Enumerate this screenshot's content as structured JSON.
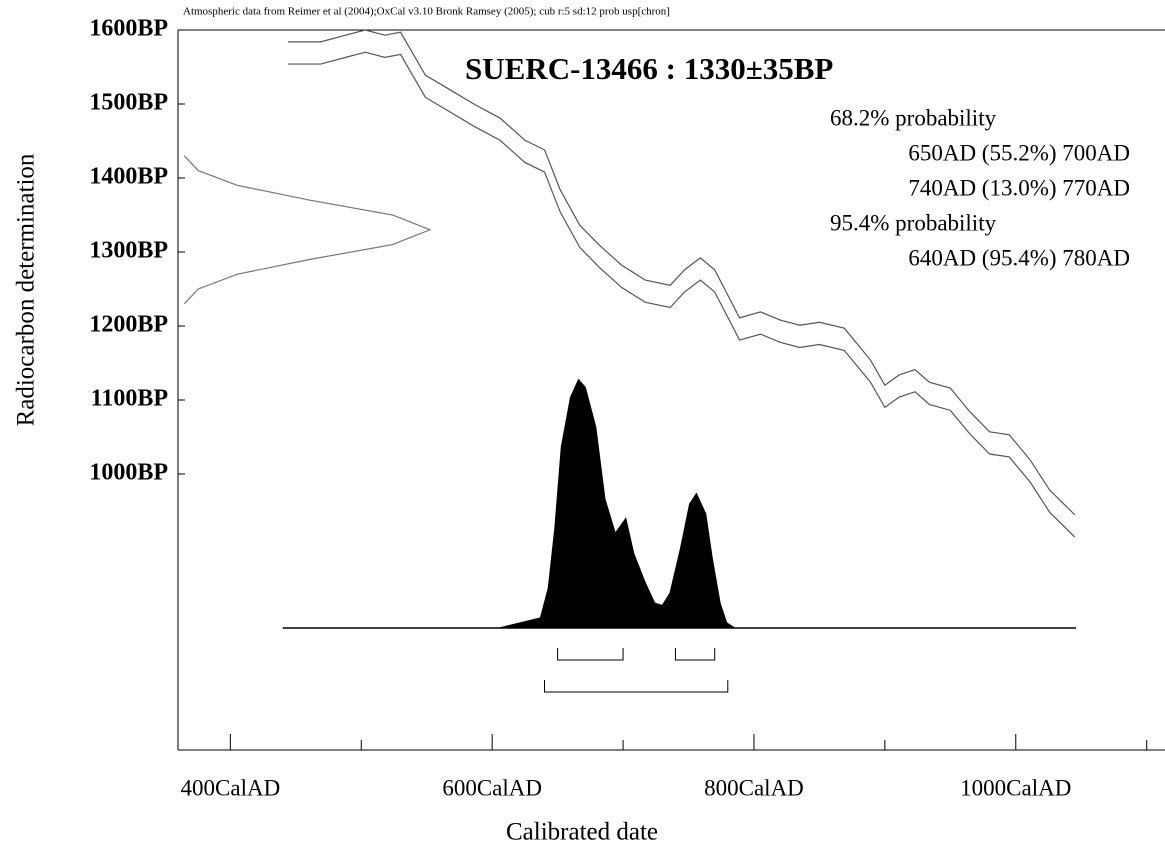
{
  "chart_data": {
    "type": "calibration",
    "note": "Atmospheric data from Reimer et al (2004);OxCal v3.10 Bronk Ramsey (2005); cub r:5 sd:12 prob usp[chron]",
    "title": "SUERC-13466 : 1330±35BP",
    "x_label": "Calibrated date",
    "y_label": "Radiocarbon determination",
    "xlim": [
      360,
      1114
    ],
    "ylim": [
      627,
      1600
    ],
    "xticks": [
      {
        "value": 400,
        "label": "400CalAD"
      },
      {
        "value": 600,
        "label": "600CalAD"
      },
      {
        "value": 800,
        "label": "800CalAD"
      },
      {
        "value": 1000,
        "label": "1000CalAD"
      }
    ],
    "xminorticks": [
      500,
      700,
      900,
      1100
    ],
    "yticks": [
      {
        "value": 1600,
        "label": "1600BP"
      },
      {
        "value": 1500,
        "label": "1500BP"
      },
      {
        "value": 1400,
        "label": "1400BP"
      },
      {
        "value": 1300,
        "label": "1300BP"
      },
      {
        "value": 1200,
        "label": "1200BP"
      },
      {
        "value": 1100,
        "label": "1100BP"
      },
      {
        "value": 1000,
        "label": "1000BP"
      }
    ],
    "curve": {
      "color": "#555555",
      "x": [
        444,
        469,
        488,
        503,
        518,
        530,
        549,
        568,
        587,
        606,
        625,
        640,
        652,
        667,
        682,
        699,
        717,
        736,
        747,
        759,
        770,
        789,
        805,
        820,
        835,
        850,
        869,
        889,
        900,
        911,
        923,
        934,
        950,
        965,
        980,
        995,
        1011,
        1026,
        1045
      ],
      "upper": [
        1584,
        1584,
        1593,
        1600,
        1593,
        1597,
        1539,
        1519,
        1499,
        1481,
        1451,
        1438,
        1384,
        1336,
        1309,
        1282,
        1262,
        1255,
        1276,
        1292,
        1276,
        1211,
        1219,
        1208,
        1201,
        1205,
        1197,
        1154,
        1120,
        1134,
        1141,
        1124,
        1116,
        1084,
        1057,
        1053,
        1019,
        978,
        945
      ],
      "lower": [
        1554,
        1554,
        1563,
        1570,
        1563,
        1567,
        1509,
        1489,
        1469,
        1451,
        1421,
        1408,
        1354,
        1306,
        1279,
        1252,
        1232,
        1225,
        1246,
        1262,
        1246,
        1181,
        1189,
        1178,
        1171,
        1175,
        1167,
        1124,
        1090,
        1104,
        1111,
        1094,
        1086,
        1054,
        1027,
        1023,
        989,
        948,
        915
      ]
    },
    "measurement": {
      "color": "#777777",
      "bp": [
        1430,
        1410,
        1390,
        1370,
        1350,
        1330,
        1310,
        1290,
        1270,
        1250,
        1230
      ],
      "density": [
        0.017,
        0.073,
        0.23,
        0.52,
        0.85,
        1,
        0.85,
        0.52,
        0.23,
        0.073,
        0.017
      ]
    },
    "posterior": {
      "color": "#000000",
      "x": [
        440,
        606,
        637,
        643,
        648,
        653,
        660,
        666,
        671,
        679,
        686,
        694,
        702,
        708,
        717,
        724,
        730,
        736,
        744,
        751,
        756,
        763,
        768,
        774,
        779,
        785,
        1046
      ],
      "values": [
        0,
        0,
        0.04,
        0.16,
        0.4,
        0.73,
        0.93,
        1,
        0.97,
        0.81,
        0.52,
        0.38,
        0.44,
        0.3,
        0.18,
        0.1,
        0.09,
        0.14,
        0.32,
        0.5,
        0.54,
        0.46,
        0.28,
        0.1,
        0.02,
        0,
        0
      ]
    },
    "ranges": [
      {
        "label": "68.2% probability",
        "intervals": [
          {
            "from": 650,
            "to": 700,
            "text": "650AD (55.2%) 700AD"
          },
          {
            "from": 740,
            "to": 770,
            "text": "740AD (13.0%) 770AD"
          }
        ]
      },
      {
        "label": "95.4% probability",
        "intervals": [
          {
            "from": 640,
            "to": 780,
            "text": "640AD (95.4%) 780AD"
          }
        ]
      }
    ]
  }
}
